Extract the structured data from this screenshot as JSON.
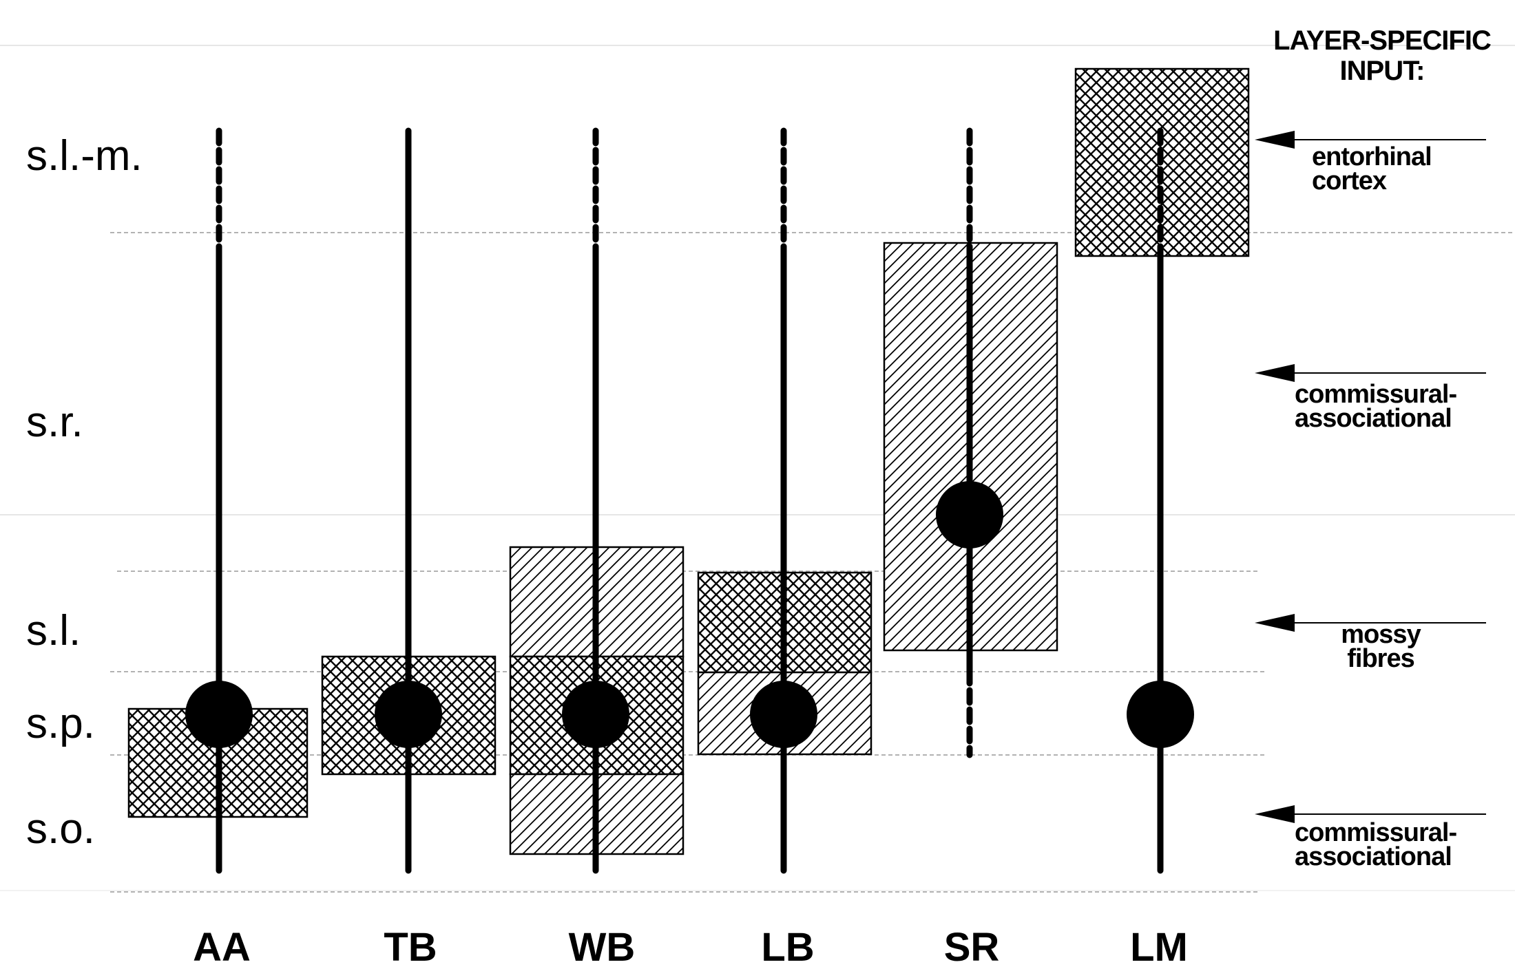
{
  "layers": [
    "s.l.-m.",
    "s.r.",
    "s.l.",
    "s.p.",
    "s.o."
  ],
  "cell_types": [
    "AA",
    "TB",
    "WB",
    "LB",
    "SR",
    "LM"
  ],
  "input_title": [
    "LAYER-SPECIFIC",
    "INPUT:"
  ],
  "inputs": [
    {
      "lines": [
        "entorhinal",
        "cortex"
      ]
    },
    {
      "lines": [
        "commissural-",
        "associational"
      ]
    },
    {
      "lines": [
        "mossy",
        "fibres"
      ]
    },
    {
      "lines": [
        "commissural-",
        "associational"
      ]
    }
  ],
  "colors": {
    "ink": "#000000",
    "grid": "#888888",
    "fill": "#ffffff"
  }
}
